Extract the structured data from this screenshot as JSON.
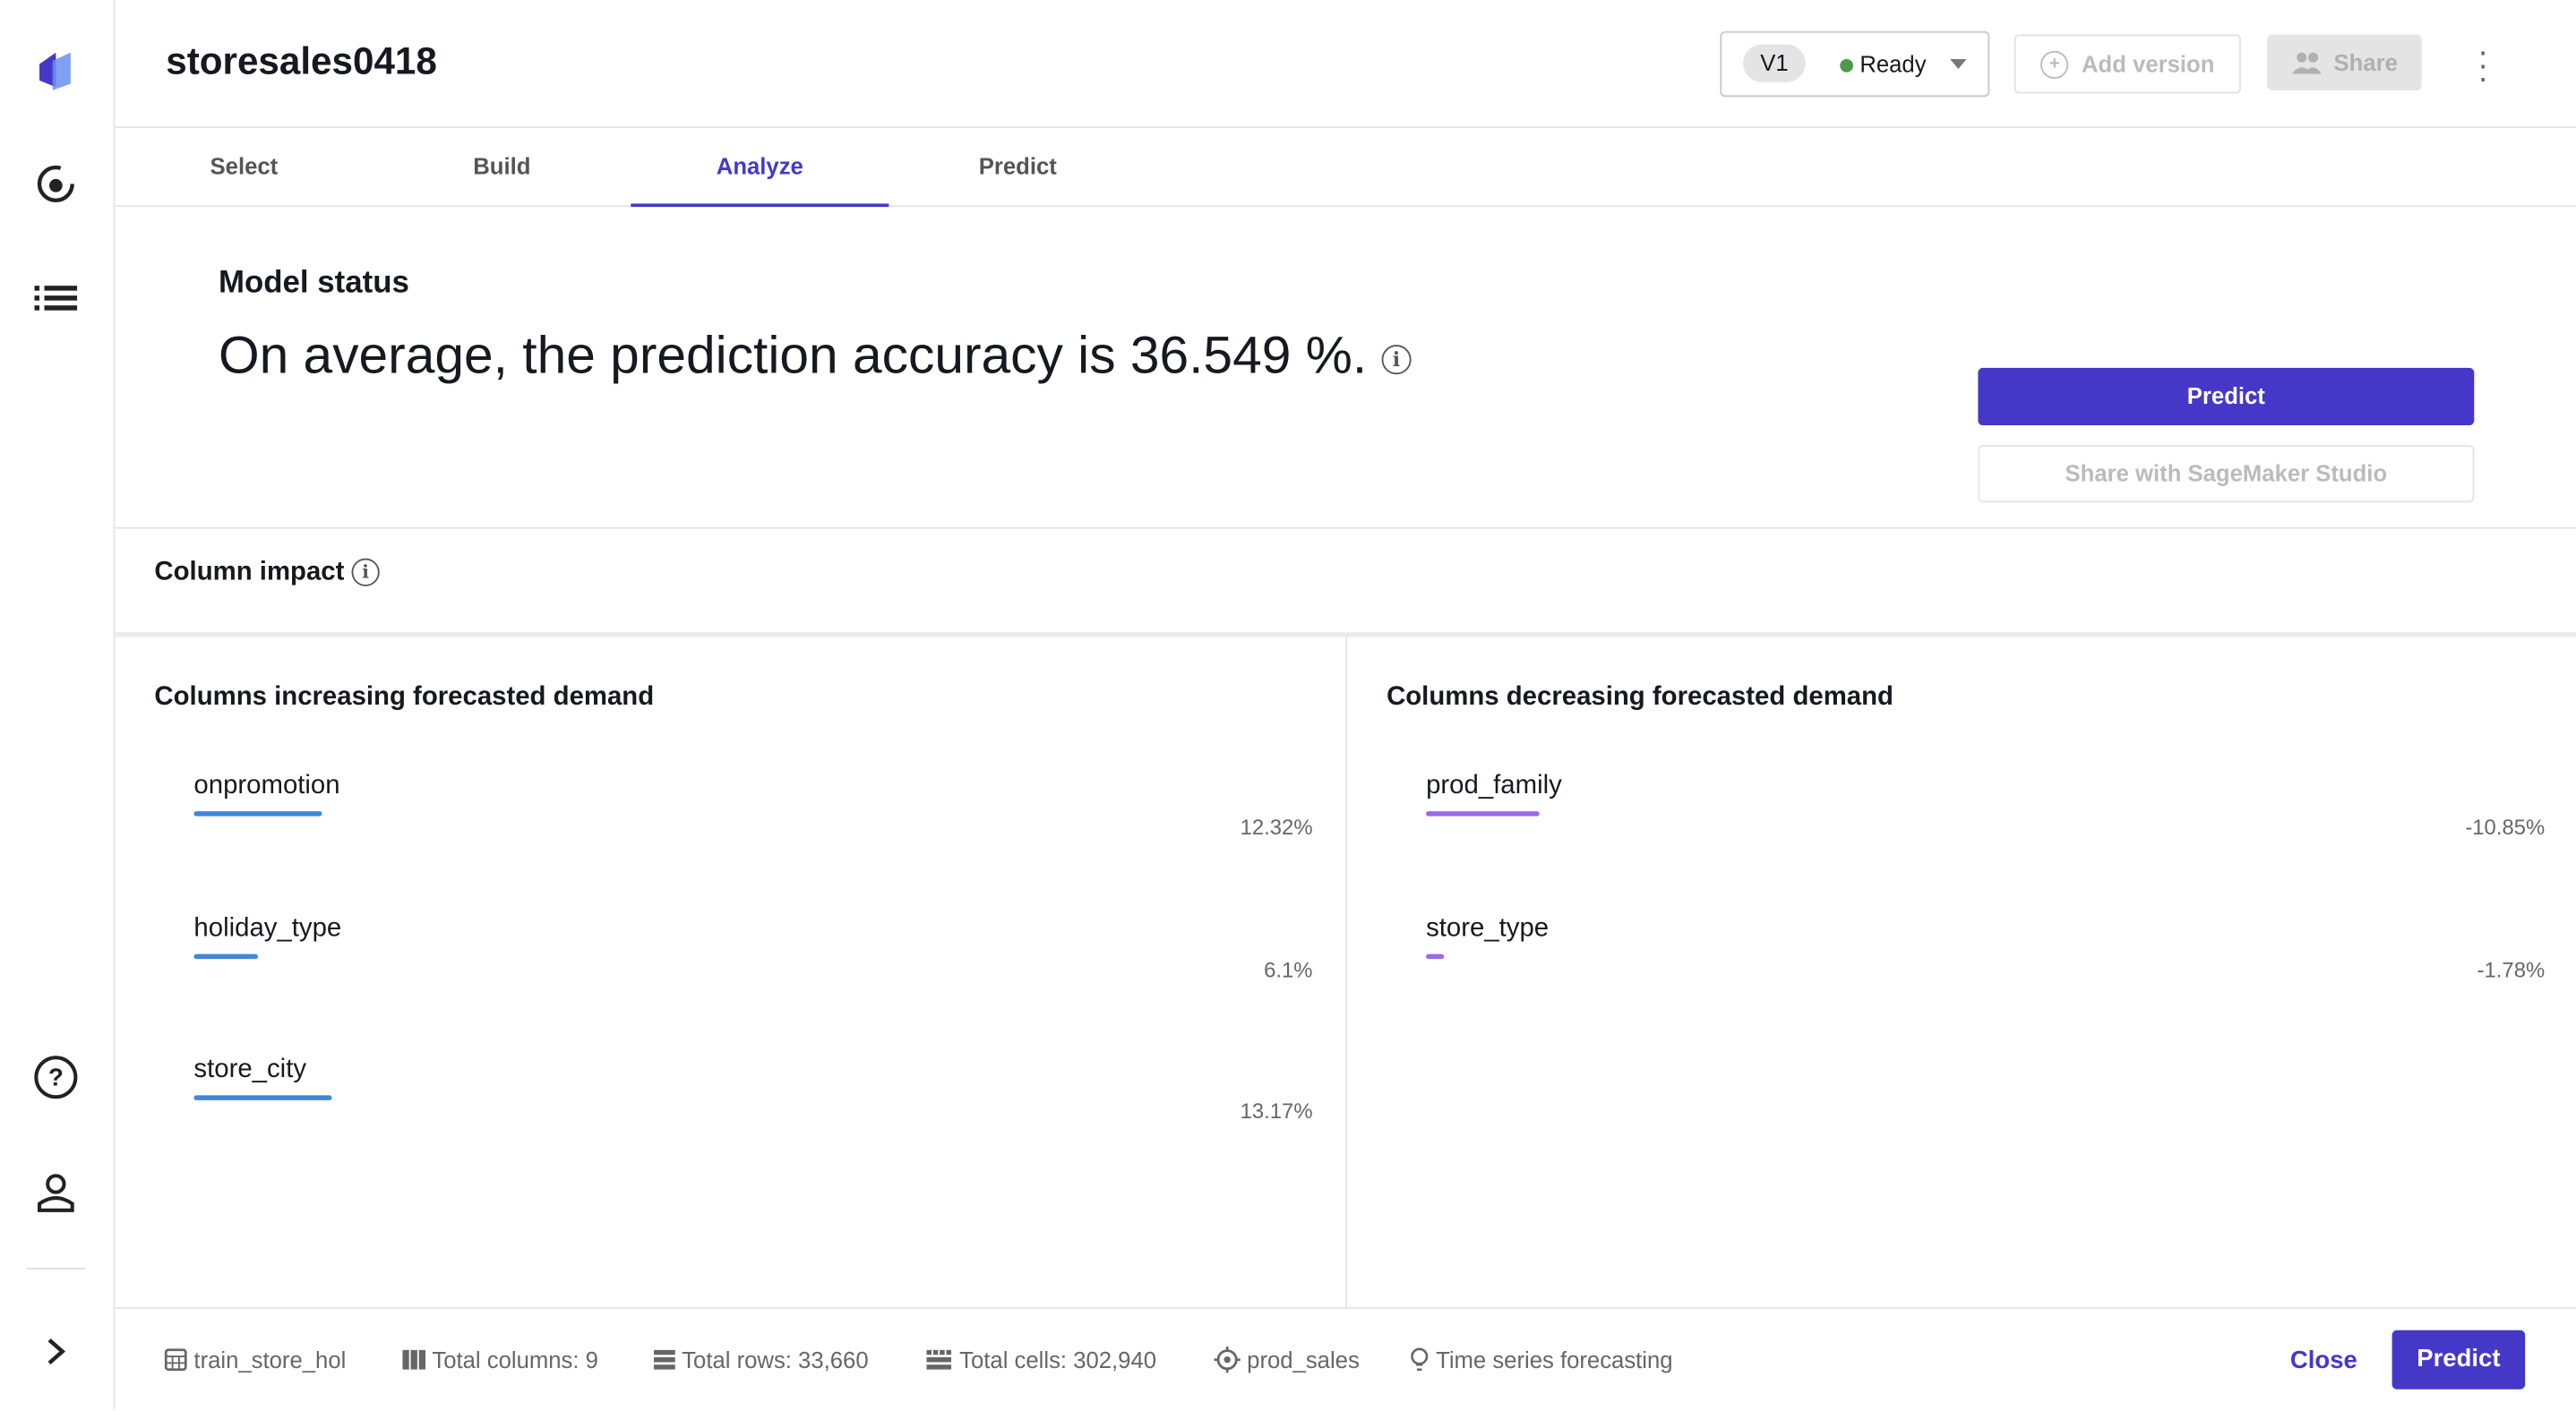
{
  "header": {
    "title": "storesales0418",
    "version": "V1",
    "status": "Ready",
    "add_version": "Add version",
    "share": "Share"
  },
  "tabs": [
    {
      "label": "Select"
    },
    {
      "label": "Build"
    },
    {
      "label": "Analyze",
      "active": true
    },
    {
      "label": "Predict"
    }
  ],
  "model_status": {
    "heading": "Model status",
    "accuracy_text": "On average, the prediction accuracy is 36.549 %.",
    "predict_button": "Predict",
    "share_button": "Share with SageMaker Studio"
  },
  "column_impact": {
    "heading": "Column impact",
    "increasing": {
      "heading": "Columns increasing forecasted demand",
      "color": "#3f87d8",
      "items": [
        {
          "name": "onpromotion",
          "value": "12.32%",
          "pct": 12.32
        },
        {
          "name": "holiday_type",
          "value": "6.1%",
          "pct": 6.1
        },
        {
          "name": "store_city",
          "value": "13.17%",
          "pct": 13.17
        }
      ]
    },
    "decreasing": {
      "heading": "Columns decreasing forecasted demand",
      "color": "#9a6ae6",
      "items": [
        {
          "name": "prod_family",
          "value": "-10.85%",
          "pct": -10.85
        },
        {
          "name": "store_type",
          "value": "-1.78%",
          "pct": -1.78
        }
      ]
    }
  },
  "footer": {
    "dataset": "train_store_hol",
    "columns": "Total columns: 9",
    "rows": "Total rows: 33,660",
    "cells": "Total cells: 302,940",
    "target": "prod_sales",
    "type": "Time series forecasting",
    "close": "Close",
    "predict": "Predict"
  },
  "colors": {
    "accent": "#4538c9",
    "ready": "#4a9c4a"
  }
}
